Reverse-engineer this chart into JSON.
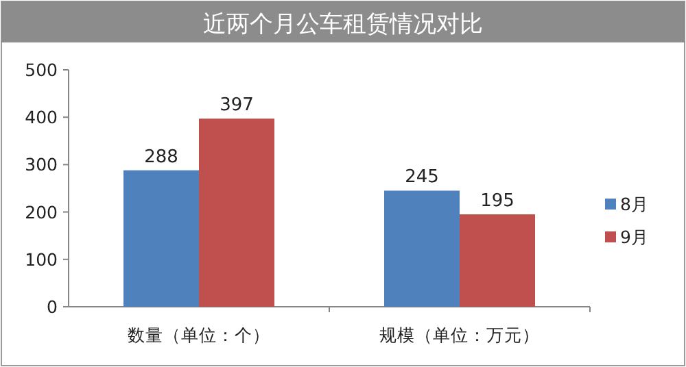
{
  "chart_data": {
    "type": "bar",
    "title": "近两个月公车租赁情况对比",
    "categories": [
      "数量（单位：个）",
      "规模（单位：万元）"
    ],
    "series": [
      {
        "name": "8月",
        "color": "#4f81bd",
        "values": [
          288,
          245
        ]
      },
      {
        "name": "9月",
        "color": "#c0504d",
        "values": [
          397,
          195
        ]
      }
    ],
    "ylim": [
      0,
      500
    ],
    "yticks": [
      0,
      100,
      200,
      300,
      400,
      500
    ],
    "data_labels": true,
    "legend": "right",
    "grid": false
  }
}
